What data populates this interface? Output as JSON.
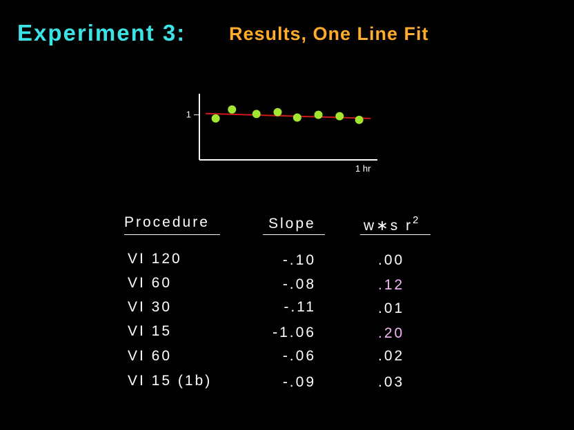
{
  "title": {
    "main": "Experiment 3:",
    "sub": "Results, One Line Fit"
  },
  "chart_data": {
    "type": "scatter",
    "title": "",
    "xlabel": "",
    "ylabel": "",
    "y_tick_label": "1",
    "x_tick_label": "1 hr",
    "ylim": [
      0,
      1.5
    ],
    "xlim": [
      0,
      1.1
    ],
    "grid": false,
    "series": [
      {
        "values": [
          {
            "x": 0.1,
            "y": 0.92
          },
          {
            "x": 0.2,
            "y": 1.12
          },
          {
            "x": 0.35,
            "y": 1.02
          },
          {
            "x": 0.48,
            "y": 1.06
          },
          {
            "x": 0.6,
            "y": 0.94
          },
          {
            "x": 0.73,
            "y": 1.0
          },
          {
            "x": 0.86,
            "y": 0.97
          },
          {
            "x": 0.98,
            "y": 0.89
          }
        ],
        "color": "#a3e632"
      }
    ],
    "fit_line": {
      "x": [
        0.0,
        1.05
      ],
      "y": [
        1.03,
        0.92
      ],
      "color": "#d11a1a"
    },
    "axis_color": "#ffffff"
  },
  "table": {
    "headers": {
      "procedure": "Procedure",
      "slope": "Slope",
      "ws_prefix": "w∗s  r",
      "ws_sup": "2"
    },
    "rows": [
      {
        "procedure": "VI 120",
        "slope": "-.10",
        "ws": ".00",
        "highlight": false
      },
      {
        "procedure": "VI 60",
        "slope": "-.08",
        "ws": ".12",
        "highlight": true
      },
      {
        "procedure": "VI 30",
        "slope": "-.11",
        "ws": ".01",
        "highlight": false
      },
      {
        "procedure": "VI 15",
        "slope": "-1.06",
        "ws": ".20",
        "highlight": true
      },
      {
        "procedure": "VI 60",
        "slope": "-.06",
        "ws": ".02",
        "highlight": false
      },
      {
        "procedure": "VI 15 (1b)",
        "slope": "-.09",
        "ws": ".03",
        "highlight": false
      }
    ]
  },
  "colors": {
    "title_main": "#3ce3e6",
    "title_sub": "#ffab2e",
    "highlight": "#f5b8f5",
    "points": "#a3e632",
    "fit": "#d11a1a"
  }
}
